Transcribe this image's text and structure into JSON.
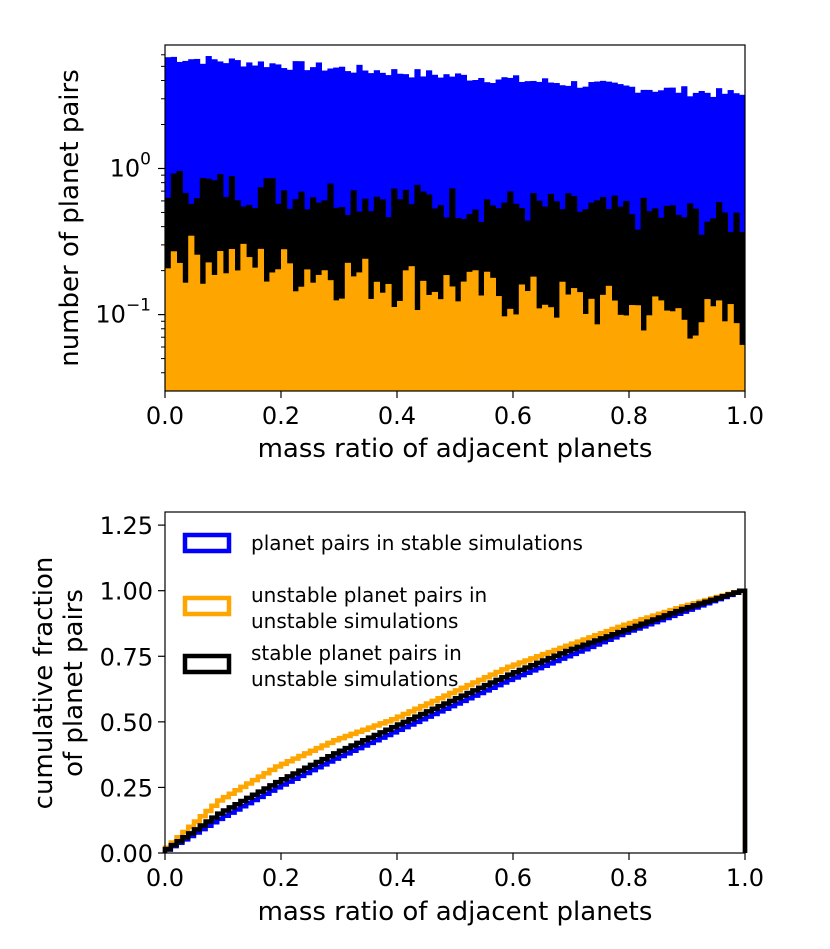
{
  "colors": {
    "stable": "#0000ff",
    "unstable": "#ffa500",
    "stable_in_unstable": "#000000"
  },
  "chart_data": [
    {
      "type": "bar",
      "subtype": "stacked-histogram",
      "title": "",
      "xlabel": "mass ratio of adjacent planets",
      "ylabel": "number of planet pairs",
      "yscale": "log",
      "xlim": [
        0.0,
        1.0
      ],
      "ylim": [
        0.03,
        7.0
      ],
      "x_ticks": [
        "0.0",
        "0.2",
        "0.4",
        "0.6",
        "0.8",
        "1.0"
      ],
      "y_ticks": [
        {
          "base": "10",
          "exp": "0",
          "value": 1.0
        },
        {
          "base": "10",
          "exp": "−1",
          "value": 0.1
        }
      ],
      "n_bins": 100,
      "series": [
        {
          "name": "planet pairs in stable simulations",
          "color": "#0000ff",
          "approx_start": 5.8,
          "approx_end": 3.2
        },
        {
          "name": "stable planet pairs in unstable simulations",
          "color": "#000000",
          "approx_start": 0.8,
          "approx_end": 0.45
        },
        {
          "name": "unstable planet pairs in unstable simulations",
          "color": "#ffa500",
          "approx_start": 0.27,
          "approx_end": 0.09
        }
      ]
    },
    {
      "type": "line",
      "subtype": "cumulative-step",
      "title": "",
      "xlabel": "mass ratio of adjacent planets",
      "ylabel_lines": [
        "cumulative fraction",
        "of planet pairs"
      ],
      "xlim": [
        0.0,
        1.0
      ],
      "ylim": [
        0.0,
        1.3
      ],
      "x_ticks": [
        "0.0",
        "0.2",
        "0.4",
        "0.6",
        "0.8",
        "1.0"
      ],
      "y_ticks": [
        "0.00",
        "0.25",
        "0.50",
        "0.75",
        "1.00",
        "1.25"
      ],
      "legend_position": "upper-left",
      "series": [
        {
          "name": "planet pairs in stable simulations",
          "label_lines": [
            "planet pairs in stable simulations"
          ],
          "color": "#0000ff",
          "x": [
            0,
            0.1,
            0.2,
            0.3,
            0.4,
            0.5,
            0.6,
            0.7,
            0.8,
            0.9,
            1.0
          ],
          "y": [
            0,
            0.13,
            0.25,
            0.36,
            0.46,
            0.56,
            0.66,
            0.75,
            0.84,
            0.92,
            1.0
          ]
        },
        {
          "name": "unstable planet pairs in unstable simulations",
          "label_lines": [
            "unstable planet pairs in",
            "unstable simulations"
          ],
          "color": "#ffa500",
          "x": [
            0,
            0.1,
            0.2,
            0.3,
            0.4,
            0.5,
            0.6,
            0.7,
            0.8,
            0.9,
            1.0
          ],
          "y": [
            0,
            0.2,
            0.33,
            0.43,
            0.51,
            0.61,
            0.71,
            0.79,
            0.87,
            0.94,
            1.0
          ]
        },
        {
          "name": "stable planet pairs in unstable simulations",
          "label_lines": [
            "stable planet pairs in",
            "unstable simulations"
          ],
          "color": "#000000",
          "x": [
            0,
            0.1,
            0.2,
            0.3,
            0.4,
            0.5,
            0.6,
            0.7,
            0.8,
            0.9,
            1.0
          ],
          "y": [
            0,
            0.15,
            0.27,
            0.38,
            0.48,
            0.58,
            0.68,
            0.77,
            0.85,
            0.93,
            1.0
          ]
        }
      ]
    }
  ]
}
